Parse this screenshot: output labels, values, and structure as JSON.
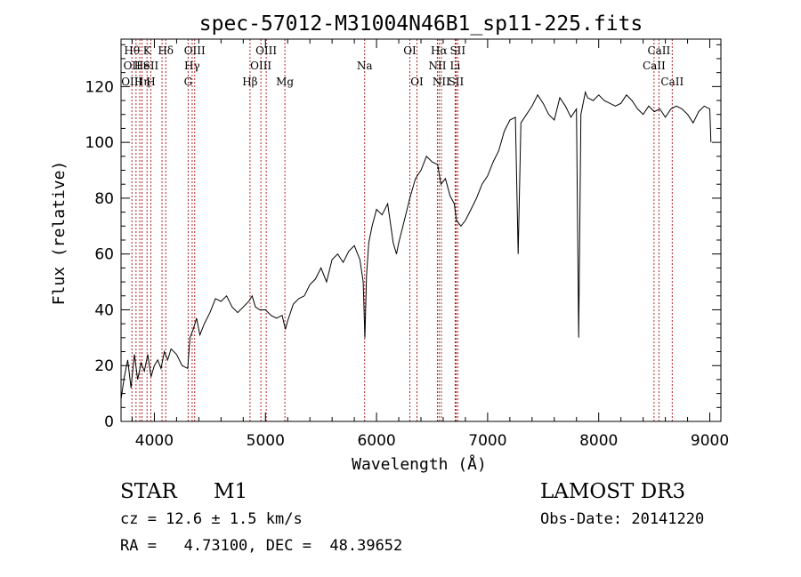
{
  "chart_data": {
    "type": "line",
    "title": "spec-57012-M31004N46B1_sp11-225.fits",
    "xlabel": "Wavelength (Å)",
    "ylabel": "Flux (relative)",
    "xlim": [
      3700,
      9100
    ],
    "ylim": [
      0,
      137
    ],
    "xticks": [
      4000,
      5000,
      6000,
      7000,
      8000,
      9000
    ],
    "yticks": [
      0,
      20,
      40,
      60,
      80,
      100,
      120
    ],
    "xtick_labels": [
      "4000",
      "5000",
      "6000",
      "7000",
      "8000",
      "9000"
    ],
    "ytick_labels": [
      "0",
      "20",
      "40",
      "60",
      "80",
      "100",
      "120"
    ],
    "grid": false,
    "line_color": "#000000",
    "marker_line_color": "#b22222",
    "series": [
      {
        "x": [
          3700,
          3730,
          3760,
          3790,
          3820,
          3850,
          3880,
          3910,
          3940,
          3970,
          4000,
          4030,
          4060,
          4090,
          4120,
          4150,
          4200,
          4250,
          4300,
          4320,
          4350,
          4380,
          4410,
          4450,
          4500,
          4550,
          4600,
          4650,
          4700,
          4750,
          4800,
          4850,
          4880,
          4910,
          4950,
          5000,
          5050,
          5100,
          5150,
          5180,
          5200,
          5250,
          5300,
          5350,
          5400,
          5450,
          5500,
          5550,
          5600,
          5650,
          5700,
          5750,
          5800,
          5850,
          5880,
          5895,
          5910,
          5930,
          5960,
          6000,
          6050,
          6100,
          6150,
          6180,
          6200,
          6250,
          6300,
          6350,
          6400,
          6450,
          6500,
          6550,
          6580,
          6620,
          6660,
          6700,
          6720,
          6760,
          6800,
          6850,
          6900,
          6950,
          7000,
          7050,
          7100,
          7150,
          7200,
          7250,
          7275,
          7300,
          7350,
          7400,
          7450,
          7500,
          7550,
          7600,
          7650,
          7700,
          7750,
          7800,
          7820,
          7840,
          7880,
          7900,
          7950,
          8000,
          8050,
          8100,
          8150,
          8200,
          8250,
          8300,
          8350,
          8400,
          8450,
          8500,
          8550,
          8600,
          8650,
          8700,
          8750,
          8800,
          8850,
          8900,
          8950,
          9000,
          9010
        ],
        "y": [
          8,
          16,
          22,
          12,
          24,
          15,
          21,
          18,
          24,
          16,
          20,
          22,
          19,
          25,
          22,
          26,
          24,
          20,
          19,
          30,
          33,
          37,
          31,
          35,
          39,
          44,
          43,
          45,
          41,
          39,
          41,
          43,
          45,
          41,
          40,
          40,
          38,
          37,
          38,
          33,
          36,
          42,
          44,
          45,
          49,
          51,
          55,
          50,
          58,
          60,
          57,
          61,
          63,
          58,
          50,
          30,
          52,
          64,
          70,
          76,
          74,
          78,
          64,
          60,
          64,
          72,
          80,
          87,
          90,
          95,
          93,
          92,
          85,
          87,
          81,
          78,
          72,
          70,
          72,
          76,
          80,
          85,
          88,
          93,
          97,
          104,
          108,
          109,
          60,
          107,
          110,
          113,
          117,
          114,
          110,
          108,
          116,
          113,
          109,
          112,
          30,
          110,
          118,
          116,
          115,
          117,
          115,
          114,
          113,
          114,
          117,
          115,
          112,
          110,
          113,
          111,
          112,
          109,
          112,
          113,
          112,
          110,
          107,
          111,
          113,
          112,
          100
        ]
      }
    ],
    "line_markers": [
      {
        "x": 3798,
        "labels": [
          "Hθ",
          "OII",
          "OIII"
        ]
      },
      {
        "x": 3835,
        "labels": [
          "Hθ",
          "OII",
          "OIII"
        ]
      },
      {
        "x": 3869,
        "labels": [
          "",
          "",
          "OIII"
        ]
      },
      {
        "x": 3889,
        "labels": [
          "",
          "He",
          "Hη"
        ]
      },
      {
        "x": 3934,
        "labels": [
          "K",
          "He",
          "Hη"
        ]
      },
      {
        "x": 3968,
        "labels": [
          "",
          "SII",
          "H"
        ]
      },
      {
        "x": 4069,
        "labels": [
          "",
          "SII",
          ""
        ]
      },
      {
        "x": 4102,
        "labels": [
          "Hδ",
          "",
          ""
        ]
      },
      {
        "x": 4304,
        "labels": [
          "",
          "",
          "G"
        ]
      },
      {
        "x": 4340,
        "labels": [
          "",
          "Hγ",
          ""
        ]
      },
      {
        "x": 4363,
        "labels": [
          "OIII",
          "",
          ""
        ]
      },
      {
        "x": 4861,
        "labels": [
          "",
          "",
          "Hβ"
        ]
      },
      {
        "x": 4959,
        "labels": [
          "",
          "OIII",
          ""
        ]
      },
      {
        "x": 5007,
        "labels": [
          "OIII",
          "",
          ""
        ]
      },
      {
        "x": 5175,
        "labels": [
          "",
          "",
          "Mg"
        ]
      },
      {
        "x": 5893,
        "labels": [
          "",
          "Na",
          ""
        ]
      },
      {
        "x": 6300,
        "labels": [
          "OI",
          "",
          ""
        ]
      },
      {
        "x": 6364,
        "labels": [
          "",
          "",
          "OI"
        ]
      },
      {
        "x": 6548,
        "labels": [
          "",
          "NII",
          ""
        ]
      },
      {
        "x": 6563,
        "labels": [
          "Hα",
          "",
          ""
        ]
      },
      {
        "x": 6583,
        "labels": [
          "",
          "",
          "NII"
        ]
      },
      {
        "x": 6708,
        "labels": [
          "",
          "Li",
          ""
        ]
      },
      {
        "x": 6716,
        "labels": [
          "SII",
          "",
          "SII"
        ]
      },
      {
        "x": 6731,
        "labels": [
          "SII",
          "",
          "SII"
        ]
      },
      {
        "x": 8498,
        "labels": [
          "",
          "CaII",
          ""
        ]
      },
      {
        "x": 8542,
        "labels": [
          "CaII",
          "",
          ""
        ]
      },
      {
        "x": 8662,
        "labels": [
          "",
          "",
          "CaII"
        ]
      }
    ],
    "marker_text": [
      {
        "text": "Hθ",
        "x": 3798,
        "row": 0
      },
      {
        "text": "K",
        "x": 3934,
        "row": 0
      },
      {
        "text": "Hδ",
        "x": 4102,
        "row": 0
      },
      {
        "text": "OIII",
        "x": 4363,
        "row": 0
      },
      {
        "text": "OIII",
        "x": 5007,
        "row": 0
      },
      {
        "text": "OI",
        "x": 6300,
        "row": 0
      },
      {
        "text": "Hα",
        "x": 6563,
        "row": 0
      },
      {
        "text": "SII",
        "x": 6731,
        "row": 0
      },
      {
        "text": "CaII",
        "x": 8542,
        "row": 0
      },
      {
        "text": "OII",
        "x": 3798,
        "row": 1
      },
      {
        "text": "He",
        "x": 3889,
        "row": 1
      },
      {
        "text": "SII",
        "x": 3968,
        "row": 1
      },
      {
        "text": "Hγ",
        "x": 4340,
        "row": 1
      },
      {
        "text": "OIII",
        "x": 4959,
        "row": 1
      },
      {
        "text": "Na",
        "x": 5893,
        "row": 1
      },
      {
        "text": "NII",
        "x": 6548,
        "row": 1
      },
      {
        "text": "Li",
        "x": 6708,
        "row": 1
      },
      {
        "text": "CaII",
        "x": 8498,
        "row": 1
      },
      {
        "text": "OIII",
        "x": 3798,
        "row": 2
      },
      {
        "text": "Hη",
        "x": 3889,
        "row": 2
      },
      {
        "text": "H",
        "x": 3968,
        "row": 2
      },
      {
        "text": "G",
        "x": 4304,
        "row": 2
      },
      {
        "text": "Hβ",
        "x": 4861,
        "row": 2
      },
      {
        "text": "Mg",
        "x": 5175,
        "row": 2
      },
      {
        "text": "OI",
        "x": 6364,
        "row": 2
      },
      {
        "text": "NII",
        "x": 6583,
        "row": 2
      },
      {
        "text": "SII",
        "x": 6716,
        "row": 2
      },
      {
        "text": "CaII",
        "x": 8662,
        "row": 2
      }
    ]
  },
  "info": {
    "object_class": "STAR",
    "subclass": "M1",
    "survey": "LAMOST DR3",
    "cz": "cz = 12.6 ± 1.5 km/s",
    "obs_date": "Obs-Date: 20141220",
    "coords": "RA =   4.73100, DEC =  48.39652"
  }
}
